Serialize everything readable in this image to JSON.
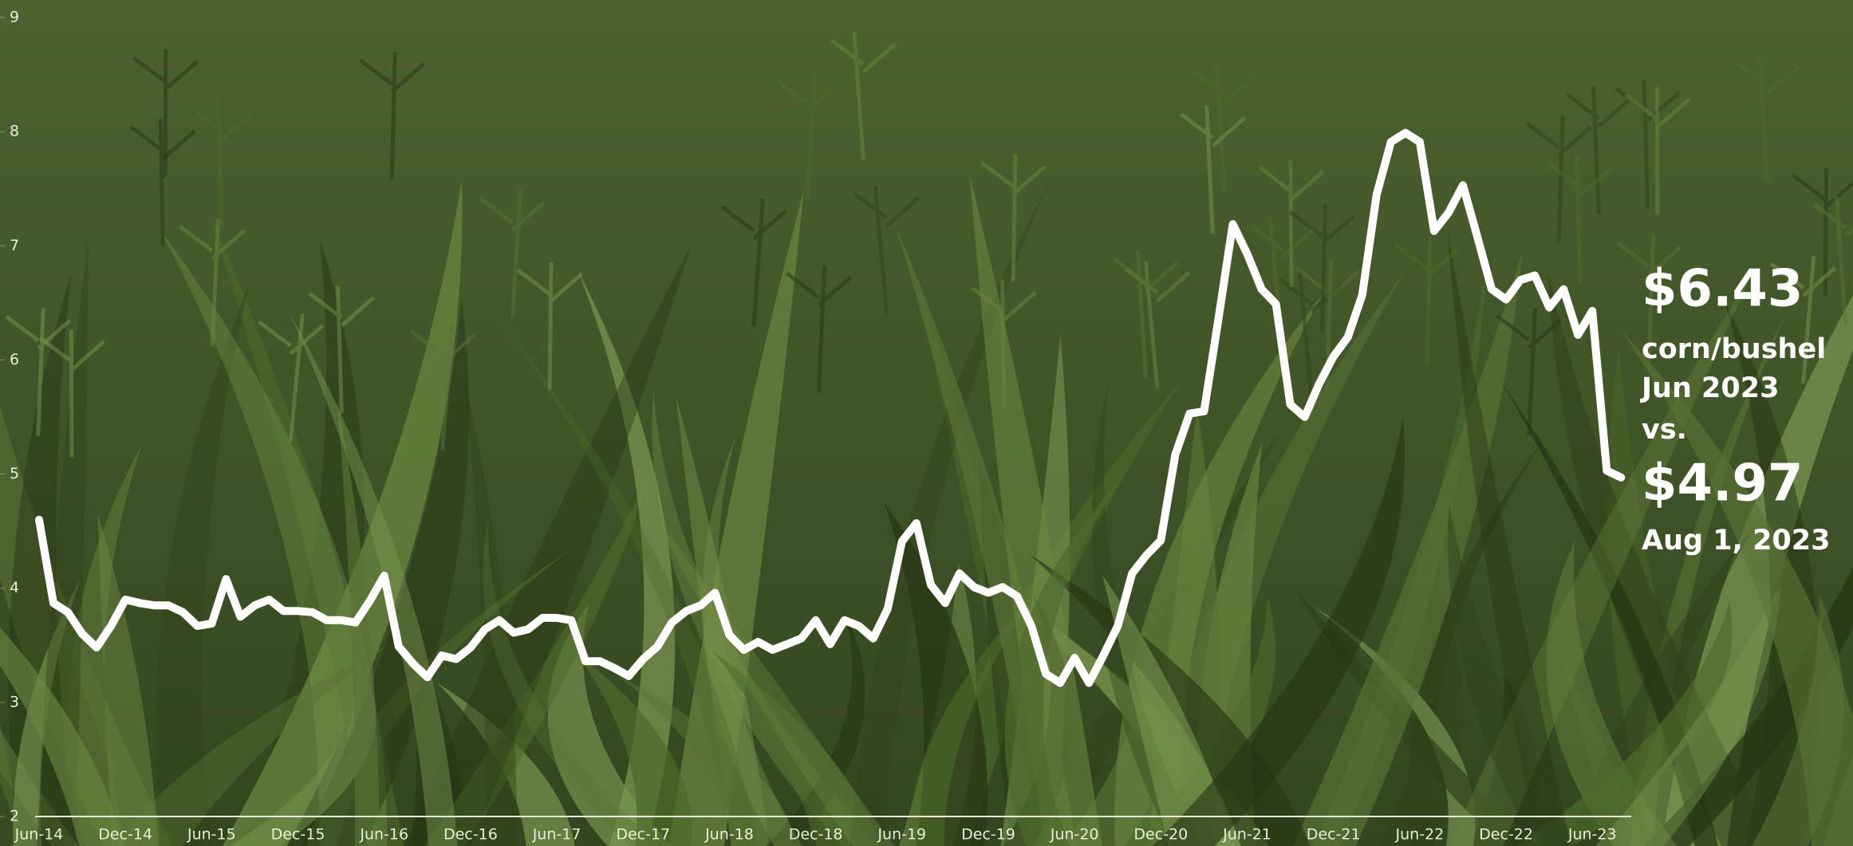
{
  "chart_data": {
    "type": "line",
    "categories": [
      "Jun-14",
      null,
      null,
      null,
      null,
      null,
      "Dec-14",
      null,
      null,
      null,
      null,
      null,
      "Jun-15",
      null,
      null,
      null,
      null,
      null,
      "Dec-15",
      null,
      null,
      null,
      null,
      null,
      "Jun-16",
      null,
      null,
      null,
      null,
      null,
      "Dec-16",
      null,
      null,
      null,
      null,
      null,
      "Jun-17",
      null,
      null,
      null,
      null,
      null,
      "Dec-17",
      null,
      null,
      null,
      null,
      null,
      "Jun-18",
      null,
      null,
      null,
      null,
      null,
      "Dec-18",
      null,
      null,
      null,
      null,
      null,
      "Jun-19",
      null,
      null,
      null,
      null,
      null,
      "Dec-19",
      null,
      null,
      null,
      null,
      null,
      "Jun-20",
      null,
      null,
      null,
      null,
      null,
      "Dec-20",
      null,
      null,
      null,
      null,
      null,
      "Jun-21",
      null,
      null,
      null,
      null,
      null,
      "Dec-21",
      null,
      null,
      null,
      null,
      null,
      "Jun-22",
      null,
      null,
      null,
      null,
      null,
      "Dec-22",
      null,
      null,
      null,
      null,
      null,
      "Jun-23",
      null,
      null
    ],
    "values": [
      4.6,
      3.87,
      3.79,
      3.6,
      3.48,
      3.67,
      3.9,
      3.87,
      3.85,
      3.85,
      3.79,
      3.67,
      3.69,
      4.08,
      3.75,
      3.85,
      3.9,
      3.8,
      3.8,
      3.79,
      3.72,
      3.72,
      3.7,
      3.89,
      4.11,
      3.49,
      3.34,
      3.22,
      3.41,
      3.38,
      3.48,
      3.64,
      3.72,
      3.61,
      3.64,
      3.74,
      3.74,
      3.72,
      3.36,
      3.36,
      3.3,
      3.23,
      3.38,
      3.49,
      3.7,
      3.8,
      3.85,
      3.96,
      3.59,
      3.46,
      3.53,
      3.46,
      3.51,
      3.56,
      3.72,
      3.51,
      3.72,
      3.67,
      3.56,
      3.82,
      4.41,
      4.57,
      4.03,
      3.87,
      4.13,
      4.01,
      3.96,
      4.01,
      3.93,
      3.67,
      3.25,
      3.17,
      3.39,
      3.17,
      3.41,
      3.67,
      4.13,
      4.29,
      4.42,
      5.17,
      5.53,
      5.55,
      6.36,
      7.19,
      6.93,
      6.62,
      6.49,
      5.61,
      5.5,
      5.79,
      6.03,
      6.2,
      6.57,
      7.45,
      7.91,
      7.99,
      7.91,
      7.13,
      7.29,
      7.53,
      7.08,
      6.62,
      6.53,
      6.7,
      6.74,
      6.46,
      6.62,
      6.22,
      6.43,
      5.03,
      4.97
    ],
    "color": "#ffffff",
    "ylim": [
      2,
      9
    ],
    "yticks": [
      2,
      3,
      4,
      5,
      6,
      7,
      8,
      9
    ],
    "annotations": [
      "$6.43",
      "corn/bushel",
      "Jun 2023",
      "vs.",
      "$4.97",
      "Aug 1, 2023"
    ]
  }
}
